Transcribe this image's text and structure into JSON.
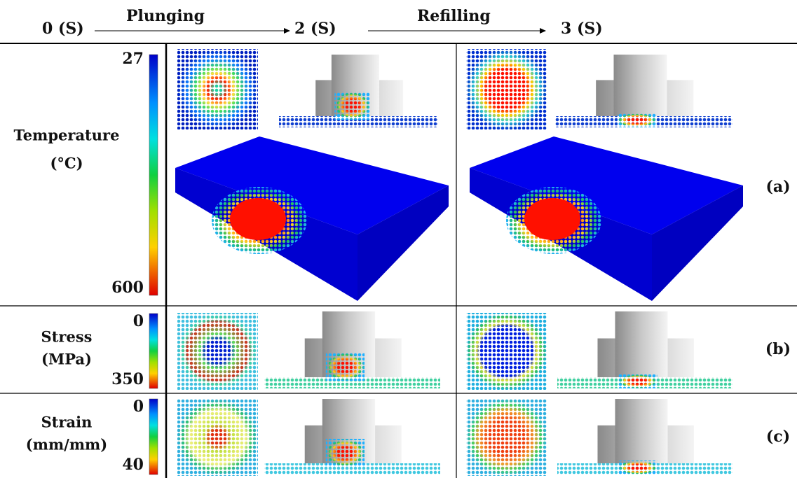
{
  "header": {
    "t0": "0 (S)",
    "step1": "Plunging",
    "t1": "2 (S)",
    "step2": "Refilling",
    "t2": "3 (S)"
  },
  "rows": [
    {
      "label": "Temperature",
      "unit": "(°C)",
      "min": "27",
      "max": "600",
      "tag": "(a)"
    },
    {
      "label": "Stress",
      "unit": "(MPa)",
      "min": "0",
      "max": "350",
      "tag": "(b)"
    },
    {
      "label": "Strain",
      "unit": "(mm/mm)",
      "min": "0",
      "max": "40",
      "tag": "(c)"
    }
  ]
}
